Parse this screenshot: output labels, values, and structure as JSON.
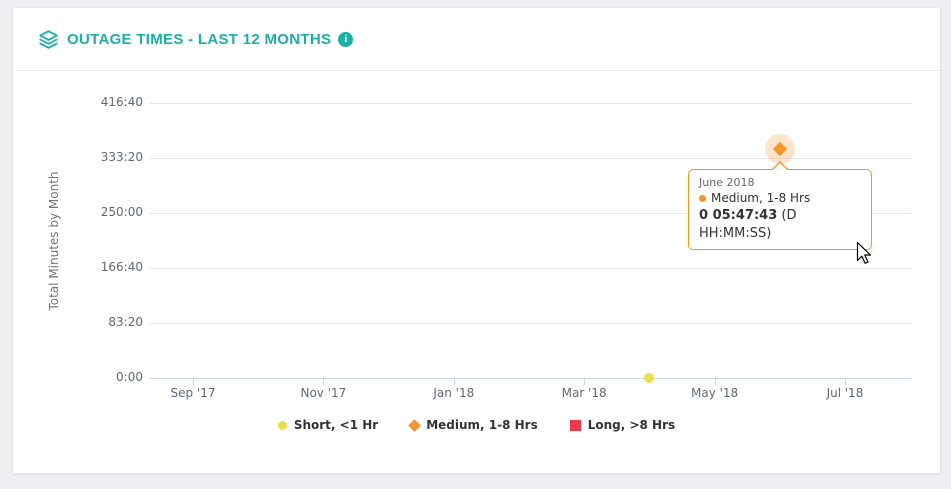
{
  "header": {
    "title": "OUTAGE TIMES - LAST 12 MONTHS",
    "info_glyph": "i"
  },
  "colors": {
    "accent": "#19b0a5",
    "grid": "#e6e6e6",
    "axis": "#ccd6eb",
    "tooltip_border": "#f7952b"
  },
  "chart_data": {
    "type": "scatter",
    "title": "OUTAGE TIMES - LAST 12 MONTHS",
    "ylabel": "Total Minutes by Month",
    "xlabel": "",
    "y_ticks": [
      "416:40",
      "333:20",
      "250:00",
      "166:40",
      "83:20",
      "0:00"
    ],
    "y_max_minutes": 416.67,
    "x_ticks": [
      "Sep '17",
      "Nov '17",
      "Jan '18",
      "Mar '18",
      "May '18",
      "Jul '18"
    ],
    "grid": true,
    "legend_position": "bottom",
    "series": [
      {
        "name": "Short, <1 Hr",
        "marker": "circle",
        "color": "#e8e14c",
        "points": [
          {
            "month": "April 2018",
            "minutes": 0
          }
        ]
      },
      {
        "name": "Medium, 1-8 Hrs",
        "marker": "diamond",
        "color": "#f7952b",
        "points": [
          {
            "month": "June 2018",
            "minutes": 347.72,
            "value_dhms": "0 05:47:43"
          }
        ]
      },
      {
        "name": "Long, >8 Hrs",
        "marker": "square",
        "color": "#f0394d",
        "points": []
      }
    ]
  },
  "tooltip": {
    "month": "June 2018",
    "series": "Medium, 1-8 Hrs",
    "value": "0 05:47:43",
    "suffix": " (D HH:MM:SS)"
  }
}
